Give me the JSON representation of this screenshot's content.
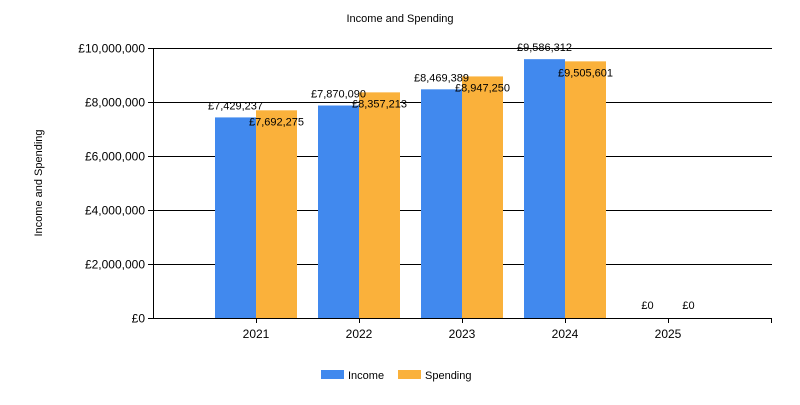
{
  "chart_data": {
    "type": "bar",
    "title": "Income and Spending",
    "xlabel": "",
    "ylabel": "Income and Spending",
    "categories": [
      "2021",
      "2022",
      "2023",
      "2024",
      "2025"
    ],
    "series": [
      {
        "name": "Income",
        "color": "#4189EE",
        "values": [
          7429237,
          7870090,
          8469389,
          9586312,
          0
        ],
        "labels": [
          "£7,429,237",
          "£7,870,090",
          "£8,469,389",
          "£9,586,312",
          "£0"
        ]
      },
      {
        "name": "Spending",
        "color": "#FAB13B",
        "values": [
          7692275,
          8357213,
          8947250,
          9505601,
          0
        ],
        "labels": [
          "£7,692,275",
          "£8,357,213",
          "£8,947,250",
          "£9,505,601",
          "£0"
        ]
      }
    ],
    "ylim": [
      0,
      10000000
    ],
    "yticks": [
      {
        "value": 0,
        "label": "£0"
      },
      {
        "value": 2000000,
        "label": "£2,000,000"
      },
      {
        "value": 4000000,
        "label": "£4,000,000"
      },
      {
        "value": 6000000,
        "label": "£6,000,000"
      },
      {
        "value": 8000000,
        "label": "£8,000,000"
      },
      {
        "value": 10000000,
        "label": "£10,000,000"
      }
    ],
    "grid": true,
    "legend_position": "bottom-center"
  }
}
